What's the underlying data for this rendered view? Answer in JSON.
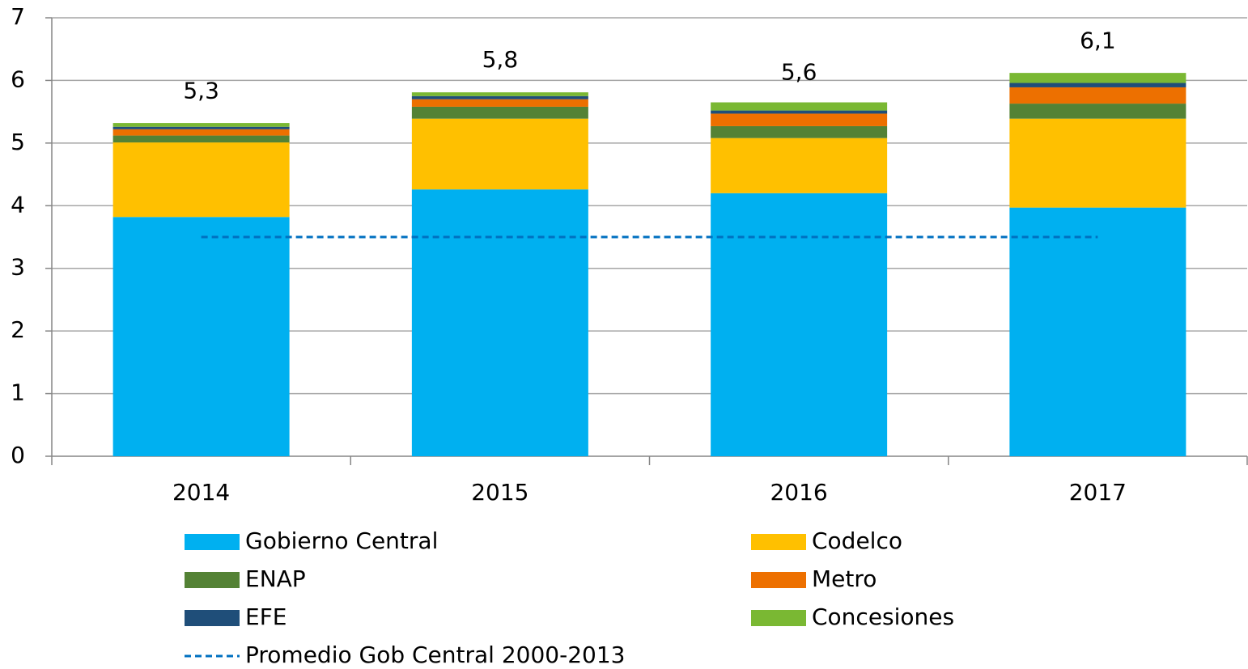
{
  "chart_data": {
    "type": "bar",
    "stacked": true,
    "categories": [
      "2014",
      "2015",
      "2016",
      "2017"
    ],
    "series": [
      {
        "name": "Gobierno Central",
        "color": "#00b0f0",
        "values": [
          3.82,
          4.26,
          4.2,
          3.97
        ]
      },
      {
        "name": "Codelco",
        "color": "#ffc000",
        "values": [
          1.19,
          1.13,
          0.88,
          1.42
        ]
      },
      {
        "name": "ENAP",
        "color": "#548235",
        "values": [
          0.11,
          0.19,
          0.19,
          0.24
        ]
      },
      {
        "name": "Metro",
        "color": "#ed7000",
        "values": [
          0.1,
          0.12,
          0.2,
          0.26
        ]
      },
      {
        "name": "EFE",
        "color": "#1f4e79",
        "values": [
          0.04,
          0.05,
          0.05,
          0.07
        ]
      },
      {
        "name": "Concesiones",
        "color": "#7ab833",
        "values": [
          0.06,
          0.06,
          0.13,
          0.16
        ]
      },
      {
        "name": "Promedio Gob Central 2000-2013",
        "color": "#0070c0",
        "type": "line",
        "dashed": true,
        "values": [
          3.5,
          3.5,
          3.5,
          3.5
        ]
      }
    ],
    "totals": {
      "values": [
        5.3,
        5.8,
        5.6,
        6.1
      ],
      "value_labels": [
        "5,3",
        "5,8",
        "5,6",
        "6,1"
      ]
    },
    "ylim": [
      0,
      7
    ],
    "yticks": [
      0,
      1,
      2,
      3,
      4,
      5,
      6,
      7
    ],
    "grid": true
  }
}
